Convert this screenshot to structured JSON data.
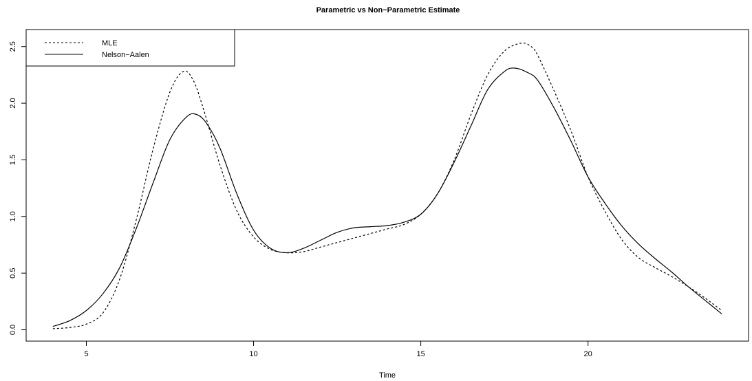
{
  "chart_data": {
    "type": "line",
    "title": "Parametric vs Non−Parametric Estimate",
    "xlabel": "Time",
    "ylabel": "",
    "xlim": [
      3.2,
      24.8
    ],
    "ylim": [
      -0.1,
      2.65
    ],
    "xticks": [
      5,
      10,
      15,
      20
    ],
    "xtick_labels": [
      "5",
      "10",
      "15",
      "20"
    ],
    "yticks": [
      0.0,
      0.5,
      1.0,
      1.5,
      2.0,
      2.5
    ],
    "ytick_labels": [
      "0.0",
      "0.5",
      "1.0",
      "1.5",
      "2.0",
      "2.5"
    ],
    "grid": false,
    "legend_position": "top-left",
    "series": [
      {
        "name": "MLE",
        "line_style": "dashed",
        "color": "#000000",
        "x": [
          4.0,
          4.5,
          5.0,
          5.5,
          6.0,
          6.5,
          7.0,
          7.5,
          7.9,
          8.2,
          8.5,
          9.0,
          9.5,
          10.0,
          10.5,
          11.0,
          11.5,
          12.0,
          12.5,
          13.0,
          13.5,
          14.0,
          14.5,
          15.0,
          15.5,
          16.0,
          16.5,
          17.0,
          17.5,
          18.0,
          18.3,
          18.5,
          19.0,
          19.5,
          20.0,
          20.5,
          21.0,
          21.5,
          22.0,
          22.5,
          23.0,
          23.5,
          24.0
        ],
        "y": [
          0.01,
          0.02,
          0.05,
          0.15,
          0.45,
          0.98,
          1.6,
          2.1,
          2.28,
          2.2,
          1.95,
          1.45,
          1.05,
          0.82,
          0.71,
          0.68,
          0.69,
          0.73,
          0.77,
          0.81,
          0.85,
          0.89,
          0.93,
          1.02,
          1.2,
          1.5,
          1.9,
          2.25,
          2.46,
          2.53,
          2.5,
          2.42,
          2.1,
          1.75,
          1.35,
          1.05,
          0.8,
          0.64,
          0.55,
          0.47,
          0.38,
          0.28,
          0.17
        ]
      },
      {
        "name": "Nelson−Aalen",
        "line_style": "solid",
        "color": "#000000",
        "x": [
          4.0,
          4.5,
          5.0,
          5.5,
          6.0,
          6.5,
          7.0,
          7.5,
          8.0,
          8.3,
          8.6,
          9.0,
          9.5,
          10.0,
          10.5,
          11.0,
          11.5,
          12.0,
          12.5,
          13.0,
          13.5,
          14.0,
          14.5,
          15.0,
          15.5,
          16.0,
          16.5,
          17.0,
          17.5,
          17.8,
          18.2,
          18.5,
          19.0,
          19.5,
          20.0,
          20.5,
          21.0,
          21.5,
          22.0,
          22.5,
          23.0,
          23.5,
          24.0
        ],
        "y": [
          0.03,
          0.08,
          0.17,
          0.32,
          0.55,
          0.9,
          1.3,
          1.68,
          1.88,
          1.9,
          1.82,
          1.6,
          1.2,
          0.88,
          0.72,
          0.68,
          0.72,
          0.79,
          0.86,
          0.9,
          0.91,
          0.92,
          0.95,
          1.02,
          1.2,
          1.48,
          1.8,
          2.12,
          2.28,
          2.31,
          2.27,
          2.2,
          1.95,
          1.66,
          1.35,
          1.12,
          0.92,
          0.76,
          0.63,
          0.51,
          0.38,
          0.26,
          0.14
        ]
      }
    ]
  }
}
